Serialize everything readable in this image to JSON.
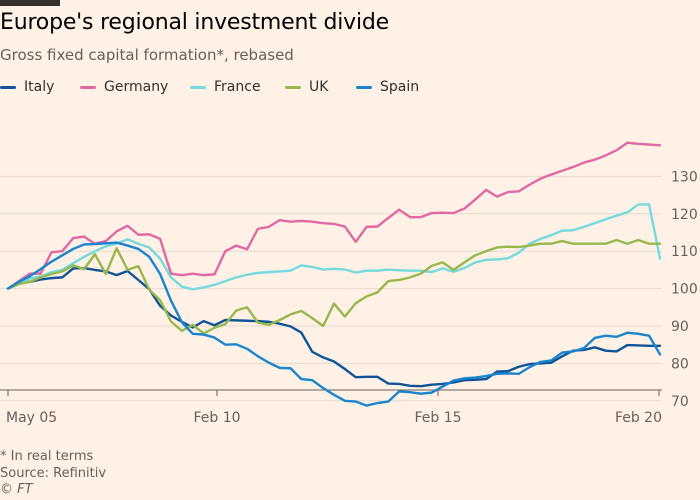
{
  "header": {
    "title": "Europe's regional investment divide",
    "subtitle": "Gross fixed capital formation*, rebased"
  },
  "footer": {
    "note": "* In real terms",
    "source": "Source: Refinitiv",
    "credit": "© FT"
  },
  "chart_data": {
    "type": "line",
    "title": "Europe's regional investment divide",
    "subtitle": "Gross fixed capital formation*, rebased",
    "xlabel": "",
    "ylabel": "",
    "x_tick_labels": [
      "May 05",
      "Feb 10",
      "Feb 15",
      "Feb 20"
    ],
    "y_ticks": [
      70,
      80,
      90,
      100,
      110,
      120,
      130
    ],
    "ylim": [
      67,
      140
    ],
    "grid": true,
    "y_axis_side": "right",
    "legend_position": "top",
    "x_points": 61,
    "series": [
      {
        "name": "Italy",
        "color": "#0f5499",
        "values": [
          100,
          101.5,
          101.8,
          102.4,
          102.8,
          103,
          105.4,
          105.5,
          105,
          104.6,
          103.6,
          104.7,
          102.3,
          99.8,
          95.4,
          92.8,
          91.1,
          89.6,
          91.3,
          90.2,
          91.6,
          91.5,
          91.4,
          91.3,
          91.1,
          90.6,
          89.9,
          88.2,
          83.1,
          81.6,
          80.5,
          78.5,
          76.3,
          76.4,
          76.4,
          74.6,
          74.5,
          74,
          73.9,
          74.3,
          74.5,
          74.9,
          75.5,
          75.6,
          75.8,
          77.8,
          77.9,
          79.1,
          79.8,
          80,
          80.2,
          81.9,
          83.4,
          83.6,
          84.3,
          83.4,
          83.2,
          84.9,
          84.8,
          84.7,
          84.7
        ]
      },
      {
        "name": "Germany",
        "color": "#e069a5",
        "values": [
          100,
          102,
          104,
          104,
          109.7,
          110,
          113.5,
          113.9,
          112,
          112.7,
          115.3,
          116.8,
          114.4,
          114.5,
          113.3,
          104,
          103.6,
          104,
          103.6,
          103.8,
          110,
          111.5,
          110.5,
          116,
          116.5,
          118.3,
          117.9,
          118.1,
          117.9,
          117.5,
          117.3,
          116.6,
          112.5,
          116.5,
          116.6,
          118.9,
          121.1,
          119.1,
          119.1,
          120.2,
          120.3,
          120.2,
          121.4,
          123.8,
          126.4,
          124.6,
          125.8,
          126,
          127.8,
          129.4,
          130.5,
          131.5,
          132.5,
          133.7,
          134.5,
          135.6,
          137,
          139,
          138.7,
          138.5,
          138.3
        ]
      },
      {
        "name": "France",
        "color": "#74dadf",
        "values": [
          100,
          101.3,
          102.7,
          103.2,
          104.4,
          105,
          106.8,
          108.5,
          110,
          111.3,
          112,
          113.2,
          112,
          111,
          108,
          103,
          100.5,
          99.8,
          100.3,
          101,
          102,
          103,
          103.7,
          104.2,
          104.4,
          104.6,
          104.8,
          106.2,
          105.8,
          105.1,
          105.3,
          105.1,
          104.3,
          104.8,
          104.8,
          105.1,
          104.9,
          104.8,
          104.8,
          104.4,
          105.4,
          104.5,
          105.5,
          107,
          107.7,
          107.8,
          108.1,
          109.6,
          112,
          113.3,
          114.3,
          115.5,
          115.6,
          116.5,
          117.5,
          118.5,
          119.5,
          120.4,
          122.5,
          122.5,
          108
        ]
      },
      {
        "name": "UK",
        "color": "#96b84c",
        "values": [
          100,
          101.2,
          101.8,
          103,
          103.9,
          104.6,
          106.2,
          105.2,
          109.2,
          103.9,
          110.8,
          105,
          106,
          99.7,
          96.9,
          91.2,
          88.7,
          90.3,
          88,
          89.5,
          90.5,
          94.1,
          95,
          90.9,
          90.3,
          91.6,
          93.1,
          94,
          92.1,
          90,
          96,
          92.5,
          96.1,
          97.9,
          99,
          102,
          102.3,
          103,
          104,
          106.1,
          107,
          105,
          107,
          108.9,
          110,
          111,
          111.2,
          111.1,
          111.5,
          112,
          112,
          112.7,
          112,
          112,
          112,
          112,
          113,
          112,
          113,
          112,
          112
        ]
      },
      {
        "name": "Spain",
        "color": "#1a84cf",
        "values": [
          100,
          101.8,
          103.3,
          105.2,
          107.2,
          108.9,
          110.6,
          111.8,
          111.9,
          112.1,
          112.3,
          111.5,
          110.6,
          108.5,
          103.9,
          96.8,
          91,
          87.9,
          87.7,
          86.9,
          85,
          85.1,
          83.9,
          81.9,
          80.2,
          78.8,
          78.7,
          75.8,
          75.5,
          73.4,
          71.6,
          70,
          69.8,
          68.7,
          69.4,
          69.8,
          72.5,
          72.3,
          71.9,
          72.2,
          73.8,
          75.4,
          76,
          76.2,
          76.6,
          77.2,
          77.3,
          77.2,
          79,
          80.4,
          80.8,
          82.9,
          83.2,
          84.1,
          86.8,
          87.4,
          87.1,
          88.2,
          87.9,
          87.4,
          82.4
        ]
      }
    ]
  }
}
